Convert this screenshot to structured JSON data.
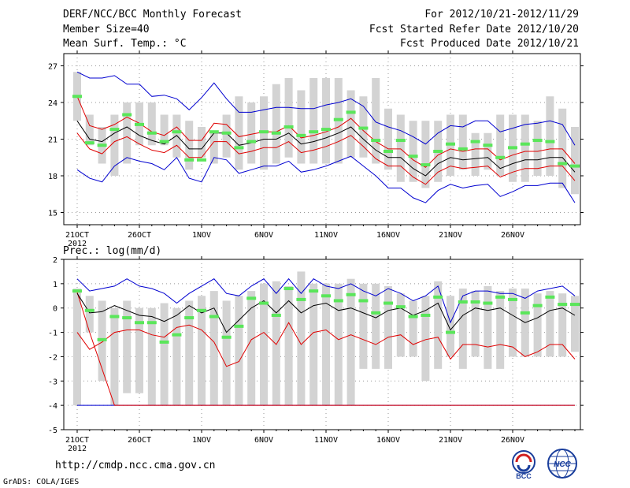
{
  "header": {
    "title": "DERF/NCC/BCC Monthly Forecast",
    "member_size": "Member Size=40",
    "variable": "Mean Surf. Temp.: °C",
    "period": "For 2012/10/21-2012/11/29",
    "started": "Fcst Started Refer Date 2012/10/20",
    "produced": "Fcst Produced Date 2012/10/21"
  },
  "footer": {
    "url": "http://cmdp.ncc.cma.gov.cn",
    "credit": "GrADS: COLA/IGES",
    "logo1_text": "BCC",
    "logo2_text": "NCC"
  },
  "colors": {
    "box": "#d3d3d3",
    "median": "#5ae65a",
    "mean": "#000000",
    "inner": "#e00000",
    "outer": "#0000d0"
  },
  "chart_data": [
    {
      "type": "box-line",
      "title": "Mean Surf. Temp.: °C",
      "ylim": [
        14,
        28
      ],
      "yticks": [
        15,
        18,
        21,
        24,
        27
      ],
      "xticks": [
        {
          "i": 0,
          "label": "21OCT"
        },
        {
          "i": 5,
          "label": "26OCT"
        },
        {
          "i": 10,
          "label": "1NOV"
        },
        {
          "i": 15,
          "label": "6NOV"
        },
        {
          "i": 20,
          "label": "11NOV"
        },
        {
          "i": 25,
          "label": "16NOV"
        },
        {
          "i": 30,
          "label": "21NOV"
        },
        {
          "i": 35,
          "label": "26NOV"
        }
      ],
      "year_label": "2012",
      "days": 40,
      "box_low": [
        22.5,
        20.5,
        19,
        18,
        19,
        20.5,
        20.5,
        20.5,
        19.5,
        18.5,
        19.5,
        19,
        19.5,
        18.5,
        19,
        18.5,
        19,
        19.5,
        19,
        19,
        19,
        19,
        19.5,
        19.5,
        19,
        18.5,
        17.5,
        17.5,
        17,
        17.5,
        18,
        18.5,
        18,
        18.5,
        18,
        17.5,
        17.5,
        18,
        18,
        17,
        16.5
      ],
      "box_high": [
        26.5,
        23,
        22,
        23,
        24,
        24,
        24,
        23,
        23,
        22.5,
        22,
        21.5,
        23,
        24.5,
        24,
        24.5,
        25.5,
        26,
        25,
        26,
        26,
        26,
        25,
        24.5,
        26,
        23.5,
        23,
        22.5,
        22.5,
        22.5,
        23,
        23,
        21.5,
        21.5,
        23,
        23,
        23,
        22.5,
        24.5,
        23.5,
        22
      ],
      "median": [
        24.5,
        20.7,
        20.5,
        21.8,
        23,
        22.2,
        21.5,
        20.8,
        21.6,
        19.3,
        19.3,
        21.6,
        21.5,
        20.3,
        20.8,
        21.6,
        21.5,
        22,
        21.3,
        21.6,
        21.8,
        22.6,
        23.2,
        21.9,
        20.9,
        20,
        20.9,
        19.6,
        18.9,
        20,
        20.6,
        20.2,
        20.8,
        20.5,
        19.5,
        20.3,
        20.6,
        20.9,
        20.8,
        19,
        18.8
      ],
      "mean": [
        22.5,
        21,
        20.8,
        21.5,
        22,
        21.3,
        20.9,
        20.6,
        21.3,
        20.2,
        20.2,
        21.5,
        21.5,
        20.5,
        20.7,
        21,
        21,
        21.5,
        20.6,
        20.8,
        21.1,
        21.5,
        22,
        21,
        20.1,
        19.5,
        19.5,
        18.6,
        18,
        19,
        19.5,
        19.3,
        19.4,
        19.5,
        18.6,
        19,
        19.3,
        19.3,
        19.5,
        19.5,
        18.3
      ],
      "inner_high": [
        24.5,
        22.1,
        21.8,
        22.2,
        22.8,
        22.3,
        21.6,
        21.3,
        22,
        20.9,
        20.9,
        22.3,
        22.2,
        21.2,
        21.4,
        21.6,
        21.6,
        22.1,
        21.1,
        21.3,
        21.6,
        22,
        22.7,
        21.7,
        20.8,
        20.2,
        20.2,
        19.3,
        18.7,
        19.7,
        20.2,
        20,
        20.2,
        20.2,
        19.3,
        19.7,
        20,
        20,
        20.2,
        20.2,
        19
      ],
      "inner_low": [
        21.5,
        20.2,
        19.8,
        20.8,
        21.2,
        20.6,
        20.1,
        19.9,
        20.5,
        19.5,
        19.5,
        20.8,
        20.8,
        19.8,
        20,
        20.3,
        20.3,
        20.8,
        19.9,
        20.1,
        20.4,
        20.8,
        21.3,
        20.4,
        19.4,
        18.8,
        18.8,
        17.9,
        17.3,
        18.3,
        18.8,
        18.6,
        18.7,
        18.8,
        17.9,
        18.3,
        18.6,
        18.6,
        18.8,
        18.8,
        17.6
      ],
      "outer_high": [
        26.5,
        26,
        26,
        26.2,
        25.5,
        25.5,
        24.5,
        24.6,
        24.3,
        23.4,
        24.4,
        25.6,
        24.3,
        23.2,
        23.2,
        23.4,
        23.6,
        23.6,
        23.5,
        23.5,
        23.8,
        24,
        24.3,
        23.7,
        22.4,
        22,
        21.7,
        21.2,
        20.6,
        21.5,
        22.1,
        22,
        22.5,
        22.5,
        21.6,
        21.9,
        22.2,
        22.3,
        22.5,
        22.2,
        20.5
      ],
      "outer_low": [
        18.5,
        17.8,
        17.5,
        18.8,
        19.5,
        19.2,
        19,
        18.5,
        19.5,
        17.8,
        17.5,
        19.5,
        19.3,
        18.2,
        18.5,
        18.8,
        18.8,
        19.2,
        18.3,
        18.5,
        18.8,
        19.2,
        19.6,
        18.8,
        18,
        17,
        17,
        16.2,
        15.8,
        16.8,
        17.3,
        17,
        17.2,
        17.3,
        16.3,
        16.7,
        17.2,
        17.2,
        17.4,
        17.4,
        15.8
      ]
    },
    {
      "type": "box-line",
      "title": "Prec.: log(mm/d)",
      "ylim": [
        -5,
        2
      ],
      "yticks": [
        -5,
        -4,
        -3,
        -2,
        -1,
        0,
        1,
        2
      ],
      "xticks": [
        {
          "i": 0,
          "label": "21OCT"
        },
        {
          "i": 5,
          "label": "26OCT"
        },
        {
          "i": 10,
          "label": "1NOV"
        },
        {
          "i": 15,
          "label": "6NOV"
        },
        {
          "i": 20,
          "label": "11NOV"
        },
        {
          "i": 25,
          "label": "16NOV"
        },
        {
          "i": 30,
          "label": "21NOV"
        },
        {
          "i": 35,
          "label": "26NOV"
        }
      ],
      "year_label": "2012",
      "days": 40,
      "box_low": [
        -4,
        -1,
        -3,
        -4,
        -3.5,
        -3.5,
        -4,
        -4,
        -4,
        -4,
        -4,
        -4,
        -4,
        -4,
        -4,
        -4,
        -4,
        -4,
        -4,
        -4,
        -4,
        -4,
        -4,
        -2.5,
        -2.5,
        -2.5,
        -2,
        -2,
        -3,
        -2.5,
        -2,
        -2.5,
        -2,
        -2.5,
        -2.5,
        -2,
        -2,
        -2,
        -2,
        -2,
        -1.8
      ],
      "box_high": [
        0.8,
        0.5,
        0.3,
        0,
        0.3,
        0,
        0,
        0.2,
        0,
        0.3,
        0.5,
        0.7,
        0.3,
        0.5,
        0.7,
        1,
        1.1,
        0.9,
        1.5,
        1,
        1,
        1,
        1.2,
        1,
        1,
        0.9,
        0.6,
        0.3,
        0.5,
        1.1,
        0.5,
        0.8,
        0.7,
        0.9,
        0.7,
        0.8,
        0.8,
        0.6,
        0.7,
        0.6,
        0.5
      ],
      "median": [
        0.7,
        -0.1,
        -1.3,
        -0.35,
        -0.4,
        -0.6,
        -0.6,
        -1.4,
        -1.1,
        -0.4,
        -0.1,
        -0.35,
        -1.2,
        -0.75,
        0.4,
        0.2,
        -0.3,
        0.8,
        0.35,
        0.7,
        0.5,
        0.3,
        0.55,
        0.3,
        -0.2,
        0.2,
        0.05,
        -0.35,
        -0.3,
        0.45,
        -1,
        0.25,
        0.25,
        0.2,
        0.45,
        0.35,
        -0.2,
        0.1,
        0.45,
        0.15,
        0.15
      ],
      "mean": [
        0.6,
        -0.2,
        -0.15,
        0.1,
        -0.1,
        -0.3,
        -0.35,
        -0.55,
        -0.3,
        0.1,
        -0.2,
        0,
        -1,
        -0.5,
        0,
        0.3,
        -0.2,
        0.3,
        -0.2,
        0.1,
        0.2,
        -0.1,
        0,
        -0.2,
        -0.4,
        -0.1,
        0,
        -0.3,
        -0.1,
        0.2,
        -0.9,
        -0.3,
        0,
        -0.1,
        0,
        -0.3,
        -0.6,
        -0.4,
        -0.1,
        0,
        -0.3
      ],
      "inner_high": [
        0.65,
        -1,
        -2.5,
        -4,
        -4,
        -4,
        -4,
        -4,
        -4,
        -4,
        -4,
        -4,
        -4,
        -4,
        -4,
        -4,
        -4,
        -4,
        -4,
        -4,
        -4,
        -4,
        -4,
        -4,
        -4,
        -4,
        -4,
        -4,
        -4,
        -4,
        -4,
        -4,
        -4,
        -4,
        -4,
        -4,
        -4,
        -4,
        -4,
        -4,
        -4
      ],
      "inner_low": [
        -1,
        -1.7,
        -1.4,
        -1,
        -0.9,
        -0.9,
        -1.1,
        -1.2,
        -0.8,
        -0.7,
        -0.9,
        -1.4,
        -2.4,
        -2.2,
        -1.3,
        -1.0,
        -1.5,
        -0.6,
        -1.5,
        -1.0,
        -0.9,
        -1.3,
        -1.1,
        -1.3,
        -1.5,
        -1.2,
        -1.1,
        -1.5,
        -1.3,
        -1.2,
        -2.1,
        -1.5,
        -1.5,
        -1.6,
        -1.5,
        -1.6,
        -2.0,
        -1.8,
        -1.5,
        -1.5,
        -2.1
      ],
      "outer_high": [
        1.2,
        0.7,
        0.8,
        0.9,
        1.2,
        0.9,
        0.8,
        0.6,
        0.2,
        0.6,
        0.9,
        1.2,
        0.6,
        0.5,
        0.9,
        1.2,
        0.6,
        1.2,
        0.6,
        1.2,
        0.9,
        0.8,
        1,
        0.7,
        0.5,
        0.8,
        0.6,
        0.3,
        0.5,
        0.9,
        -0.6,
        0.5,
        0.7,
        0.7,
        0.6,
        0.6,
        0.4,
        0.7,
        0.8,
        0.9,
        0.5
      ],
      "outer_low": [
        -4,
        -4,
        -4,
        -4,
        -4,
        -4,
        -4,
        -4,
        -4,
        -4,
        -4,
        -4,
        -4,
        -4,
        -4,
        -4,
        -4,
        -4,
        -4,
        -4,
        -4,
        -4,
        -4,
        -4,
        -4,
        -4,
        -4,
        -4,
        -4,
        -4,
        -4,
        -4,
        -4,
        -4,
        -4,
        -4,
        -4,
        -4,
        -4,
        -4,
        -4
      ]
    }
  ]
}
